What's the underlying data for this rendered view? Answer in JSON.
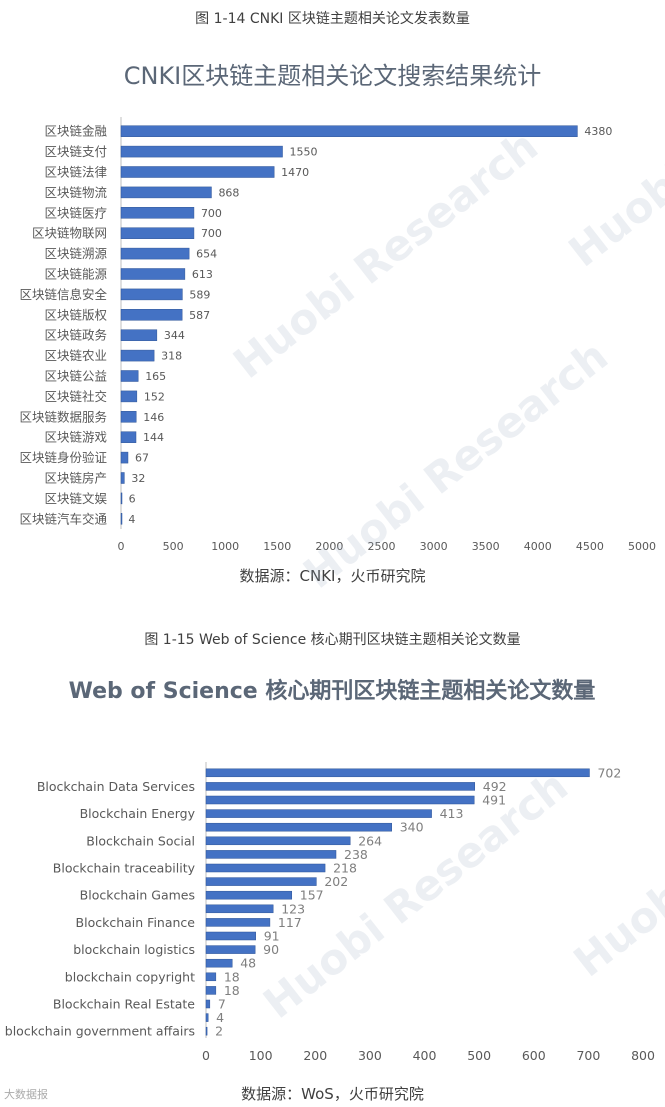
{
  "captions": {
    "fig1": "图 1-14 CNKI 区块链主题相关论文发表数量",
    "fig2": "图 1-15 Web of Science 核心期刊区块链主题相关论文数量"
  },
  "sources": {
    "fig1": "数据源：CNKI，火币研究院",
    "fig2": "数据源：WoS，火币研究院"
  },
  "watermark": {
    "text1": "Huobi Research",
    "text2": "Huobi",
    "corner": "大数据报"
  },
  "colors": {
    "bar": "#4472c4",
    "bar_edge": "#2f5597",
    "title": "#5b6777"
  },
  "chart_data": [
    {
      "type": "bar",
      "orientation": "horizontal",
      "title": "CNKI区块链主题相关论文搜索结果统计",
      "categories": [
        "区块链金融",
        "区块链支付",
        "区块链法律",
        "区块链物流",
        "区块链医疗",
        "区块链物联网",
        "区块链溯源",
        "区块链能源",
        "区块链信息安全",
        "区块链版权",
        "区块链政务",
        "区块链农业",
        "区块链公益",
        "区块链社交",
        "区块链数据服务",
        "区块链游戏",
        "区块链身份验证",
        "区块链房产",
        "区块链文娱",
        "区块链汽车交通"
      ],
      "values": [
        4380,
        1550,
        1470,
        868,
        700,
        700,
        654,
        613,
        589,
        587,
        344,
        318,
        165,
        152,
        146,
        144,
        67,
        32,
        6,
        4
      ],
      "xlim": [
        0,
        5000
      ],
      "xticks": [
        0,
        500,
        1000,
        1500,
        2000,
        2500,
        3000,
        3500,
        4000,
        4500,
        5000
      ],
      "grid": false
    },
    {
      "type": "bar",
      "orientation": "horizontal",
      "title": "Web of Science 核心期刊区块链主题相关论文数量",
      "category_labels": [
        "Blockchain Data Services",
        "Blockchain Energy",
        "Blockchain Social",
        "Blockchain traceability",
        "Blockchain Games",
        "Blockchain Finance",
        "blockchain logistics",
        "blockchain copyright",
        "Blockchain Real Estate",
        "blockchain government affairs"
      ],
      "values": [
        702,
        492,
        491,
        413,
        340,
        264,
        238,
        218,
        202,
        157,
        123,
        117,
        91,
        90,
        48,
        18,
        18,
        7,
        4,
        2
      ],
      "xlim": [
        0,
        800
      ],
      "xticks": [
        0,
        100,
        200,
        300,
        400,
        500,
        600,
        700,
        800
      ],
      "grid": false
    }
  ]
}
